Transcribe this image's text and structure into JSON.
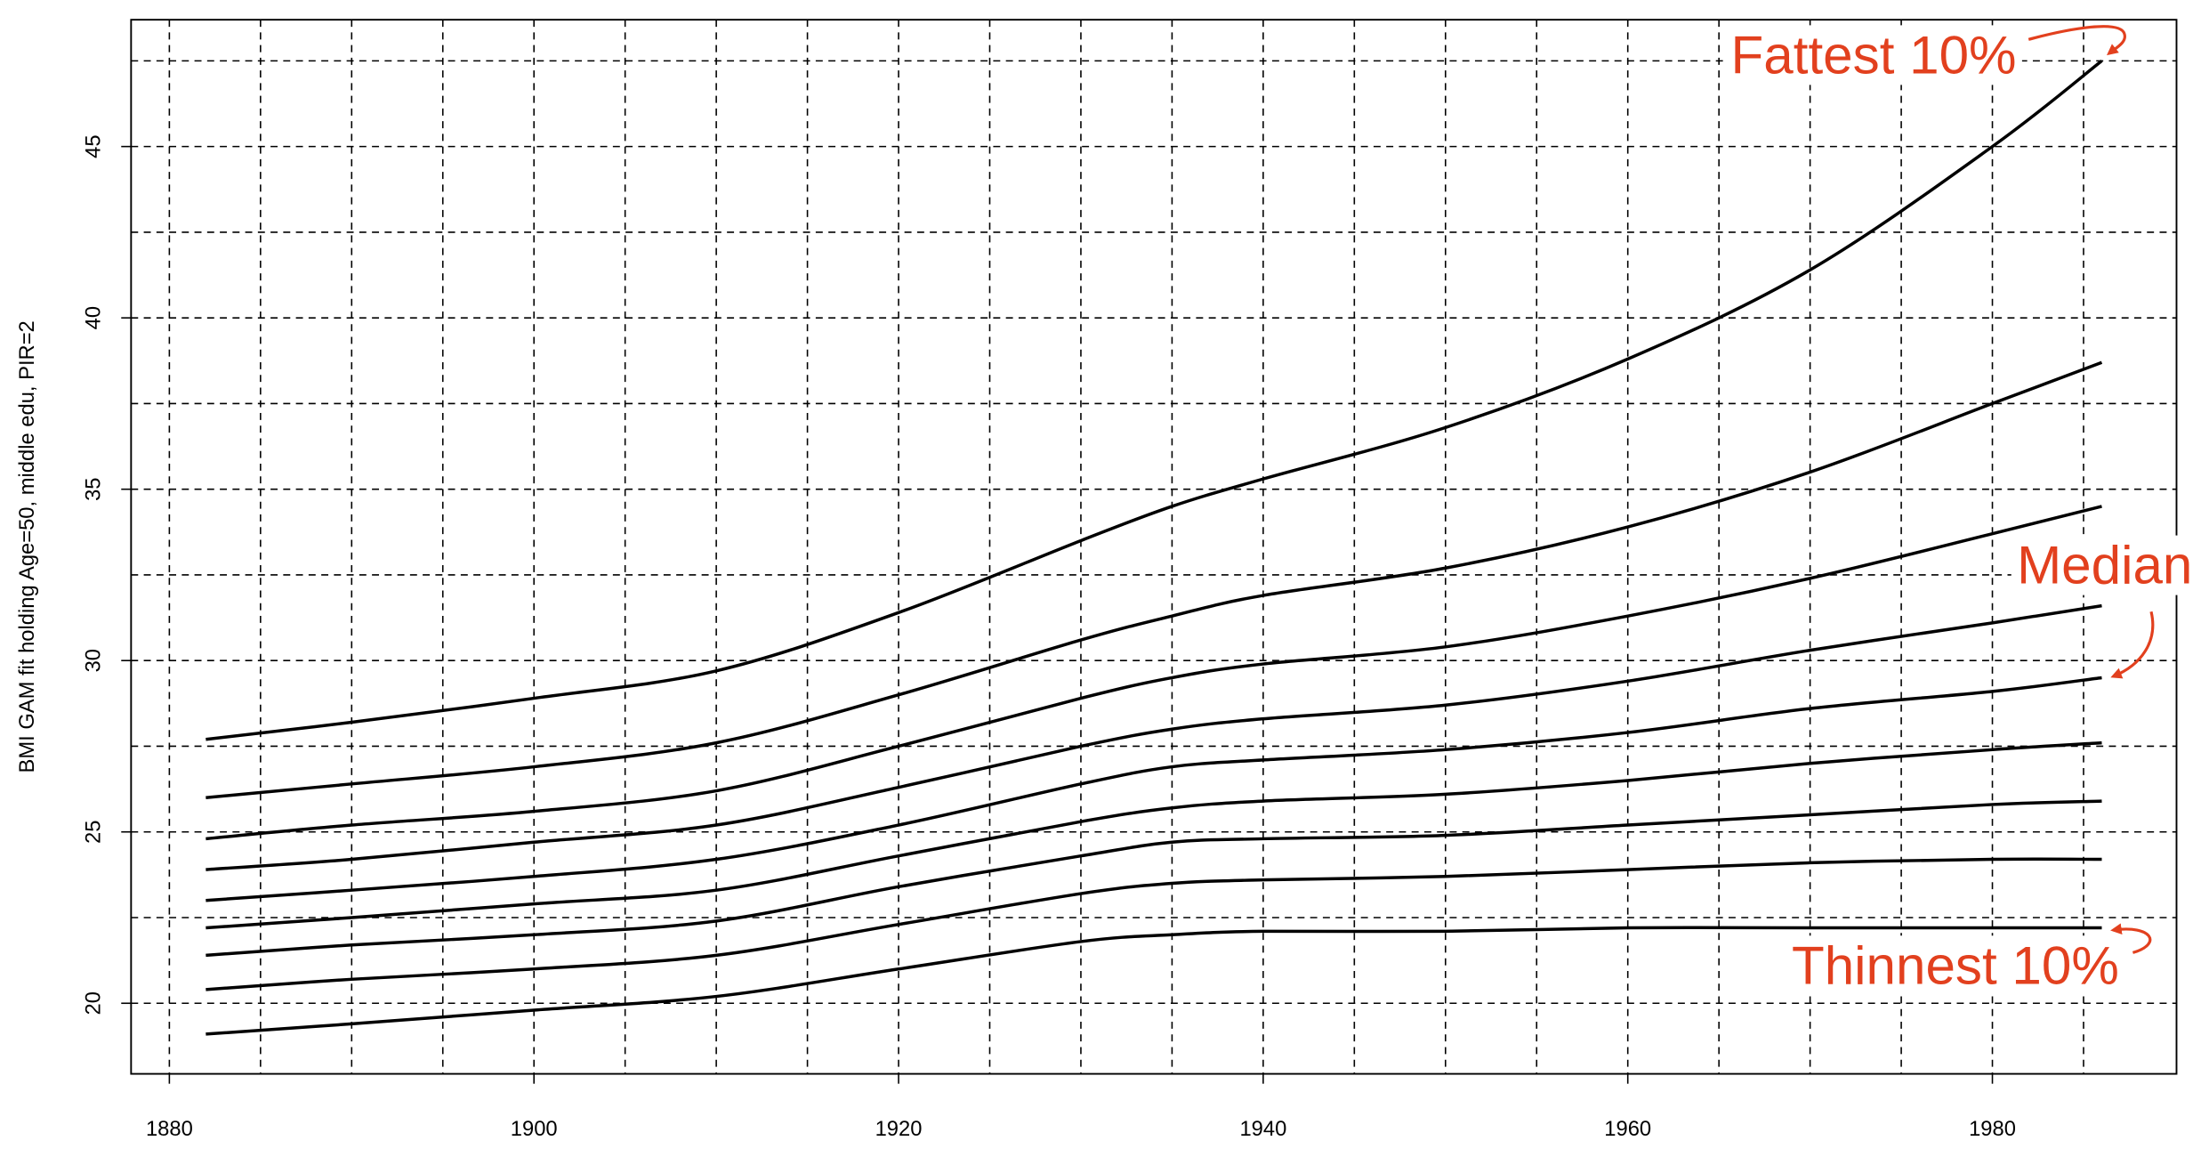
{
  "chart_data": {
    "type": "line",
    "y_label": "BMI GAM fit holding Age=50, middle edu, PIR=2",
    "annotations": [
      "Fattest 10%",
      "Median",
      "Thinnest 10%"
    ],
    "annotation_color": "#e2401e",
    "x": [
      1882,
      1890,
      1900,
      1910,
      1920,
      1930,
      1935,
      1940,
      1950,
      1960,
      1970,
      1980,
      1986
    ],
    "series": [
      {
        "color": "#000000",
        "values": [
          27.7,
          28.2,
          28.9,
          29.7,
          31.4,
          33.5,
          34.5,
          35.3,
          36.8,
          38.8,
          41.4,
          45.0,
          47.5
        ]
      },
      {
        "color": "#000000",
        "values": [
          26.0,
          26.4,
          26.9,
          27.6,
          29.0,
          30.6,
          31.3,
          31.9,
          32.7,
          33.9,
          35.5,
          37.5,
          38.7
        ]
      },
      {
        "color": "#000000",
        "values": [
          24.8,
          25.2,
          25.6,
          26.2,
          27.5,
          28.9,
          29.5,
          29.9,
          30.4,
          31.3,
          32.4,
          33.7,
          34.5
        ]
      },
      {
        "color": "#000000",
        "values": [
          23.9,
          24.2,
          24.7,
          25.2,
          26.3,
          27.5,
          28.0,
          28.3,
          28.7,
          29.4,
          30.3,
          31.1,
          31.6
        ]
      },
      {
        "color": "#000000",
        "values": [
          23.0,
          23.3,
          23.7,
          24.2,
          25.2,
          26.4,
          26.9,
          27.1,
          27.4,
          27.9,
          28.6,
          29.1,
          29.5
        ]
      },
      {
        "color": "#000000",
        "values": [
          22.2,
          22.5,
          22.9,
          23.3,
          24.3,
          25.3,
          25.7,
          25.9,
          26.1,
          26.5,
          27.0,
          27.4,
          27.6
        ]
      },
      {
        "color": "#000000",
        "values": [
          21.4,
          21.7,
          22.0,
          22.4,
          23.4,
          24.3,
          24.7,
          24.8,
          24.9,
          25.2,
          25.5,
          25.8,
          25.9
        ]
      },
      {
        "color": "#000000",
        "values": [
          20.4,
          20.7,
          21.0,
          21.4,
          22.3,
          23.2,
          23.5,
          23.6,
          23.7,
          23.9,
          24.1,
          24.2,
          24.2
        ]
      },
      {
        "color": "#000000",
        "values": [
          19.1,
          19.4,
          19.8,
          20.2,
          21.0,
          21.8,
          22.0,
          22.1,
          22.1,
          22.2,
          22.2,
          22.2,
          22.2
        ]
      }
    ],
    "xlim": [
      1877.9,
      1990.1
    ],
    "ylim": [
      17.94,
      48.7
    ],
    "xticks": [
      1880,
      1900,
      1920,
      1940,
      1960,
      1980
    ],
    "yticks": [
      20,
      25,
      30,
      35,
      40,
      45
    ],
    "xgrid": [
      1880,
      1885,
      1890,
      1895,
      1900,
      1905,
      1910,
      1915,
      1920,
      1925,
      1930,
      1935,
      1940,
      1945,
      1950,
      1955,
      1960,
      1965,
      1970,
      1975,
      1980,
      1985
    ],
    "ygrid": [
      20,
      22.5,
      25,
      27.5,
      30,
      32.5,
      35,
      37.5,
      40,
      42.5,
      45,
      47.5
    ],
    "grid": true
  }
}
